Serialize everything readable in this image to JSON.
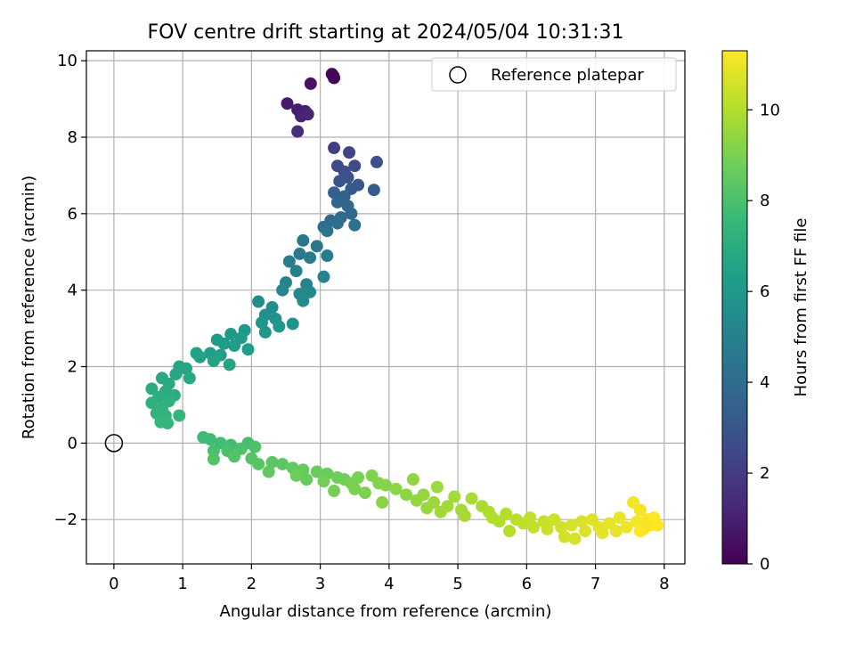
{
  "chart_data": {
    "type": "scatter",
    "title": "FOV centre drift starting at 2024/05/04 10:31:31",
    "xlabel": "Angular distance from reference (arcmin)",
    "ylabel": "Rotation from reference (arcmin)",
    "xlim": [
      -0.4,
      8.3
    ],
    "ylim": [
      -3.16,
      10.26
    ],
    "xticks": [
      "0",
      "1",
      "2",
      "3",
      "4",
      "5",
      "6",
      "7",
      "8"
    ],
    "yticks": [
      "−2",
      "0",
      "2",
      "4",
      "6",
      "8",
      "10"
    ],
    "grid": true,
    "legend": {
      "placement": "top-right",
      "entries": [
        "Reference platepar"
      ]
    },
    "reference_point": {
      "x": 0,
      "y": 0
    },
    "colorbar": {
      "label": "Hours from first FF file",
      "min": 0,
      "max": 11.3,
      "ticks": [
        "0",
        "2",
        "4",
        "6",
        "8",
        "10"
      ],
      "colormap": "viridis",
      "stops": [
        "#440154",
        "#482878",
        "#3e4a89",
        "#31688e",
        "#26828e",
        "#1f9e89",
        "#35b779",
        "#6ece58",
        "#b5de2b",
        "#fde725"
      ]
    },
    "series": [
      {
        "points": [
          {
            "x": 3.19,
            "y": 9.6,
            "t": 0.1
          },
          {
            "x": 3.17,
            "y": 9.65,
            "t": 0.15
          },
          {
            "x": 3.2,
            "y": 9.55,
            "t": 0.2
          },
          {
            "x": 2.86,
            "y": 9.4,
            "t": 0.5
          },
          {
            "x": 2.52,
            "y": 8.88,
            "t": 0.8
          },
          {
            "x": 2.67,
            "y": 8.72,
            "t": 0.9
          },
          {
            "x": 2.78,
            "y": 8.68,
            "t": 1.0
          },
          {
            "x": 2.72,
            "y": 8.55,
            "t": 1.1
          },
          {
            "x": 2.82,
            "y": 8.6,
            "t": 1.2
          },
          {
            "x": 2.67,
            "y": 8.15,
            "t": 1.5
          },
          {
            "x": 3.2,
            "y": 7.72,
            "t": 2.1
          },
          {
            "x": 3.42,
            "y": 7.6,
            "t": 2.3
          },
          {
            "x": 3.25,
            "y": 7.25,
            "t": 2.5
          },
          {
            "x": 3.5,
            "y": 7.25,
            "t": 2.6
          },
          {
            "x": 3.35,
            "y": 7.1,
            "t": 2.7
          },
          {
            "x": 3.82,
            "y": 7.35,
            "t": 2.8
          },
          {
            "x": 3.4,
            "y": 6.95,
            "t": 2.9
          },
          {
            "x": 3.28,
            "y": 6.85,
            "t": 3.0
          },
          {
            "x": 3.55,
            "y": 6.75,
            "t": 3.1
          },
          {
            "x": 3.45,
            "y": 6.65,
            "t": 3.2
          },
          {
            "x": 3.78,
            "y": 6.62,
            "t": 3.3
          },
          {
            "x": 3.2,
            "y": 6.55,
            "t": 3.4
          },
          {
            "x": 3.35,
            "y": 6.45,
            "t": 3.5
          },
          {
            "x": 3.25,
            "y": 6.3,
            "t": 3.6
          },
          {
            "x": 3.4,
            "y": 6.2,
            "t": 3.7
          },
          {
            "x": 3.45,
            "y": 6.0,
            "t": 3.8
          },
          {
            "x": 3.3,
            "y": 5.9,
            "t": 3.9
          },
          {
            "x": 3.15,
            "y": 5.82,
            "t": 4.0
          },
          {
            "x": 3.05,
            "y": 5.65,
            "t": 4.1
          },
          {
            "x": 3.25,
            "y": 5.75,
            "t": 4.15
          },
          {
            "x": 3.5,
            "y": 5.7,
            "t": 4.2
          },
          {
            "x": 3.1,
            "y": 5.55,
            "t": 4.3
          },
          {
            "x": 2.75,
            "y": 5.3,
            "t": 4.4
          },
          {
            "x": 2.95,
            "y": 5.15,
            "t": 4.5
          },
          {
            "x": 2.7,
            "y": 4.95,
            "t": 4.6
          },
          {
            "x": 2.85,
            "y": 4.85,
            "t": 4.7
          },
          {
            "x": 3.1,
            "y": 4.9,
            "t": 4.75
          },
          {
            "x": 2.55,
            "y": 4.75,
            "t": 4.8
          },
          {
            "x": 2.65,
            "y": 4.5,
            "t": 4.9
          },
          {
            "x": 3.05,
            "y": 4.35,
            "t": 5.0
          },
          {
            "x": 2.5,
            "y": 4.2,
            "t": 5.1
          },
          {
            "x": 2.8,
            "y": 4.15,
            "t": 5.15
          },
          {
            "x": 2.45,
            "y": 4.0,
            "t": 5.2
          },
          {
            "x": 2.7,
            "y": 3.9,
            "t": 5.3
          },
          {
            "x": 2.85,
            "y": 3.95,
            "t": 5.35
          },
          {
            "x": 2.75,
            "y": 3.72,
            "t": 5.4
          },
          {
            "x": 2.1,
            "y": 3.7,
            "t": 5.5
          },
          {
            "x": 2.3,
            "y": 3.55,
            "t": 5.6
          },
          {
            "x": 2.2,
            "y": 3.35,
            "t": 5.7
          },
          {
            "x": 2.35,
            "y": 3.25,
            "t": 5.75
          },
          {
            "x": 2.6,
            "y": 3.12,
            "t": 5.8
          },
          {
            "x": 2.15,
            "y": 3.15,
            "t": 5.85
          },
          {
            "x": 2.4,
            "y": 3.05,
            "t": 5.9
          },
          {
            "x": 2.2,
            "y": 2.9,
            "t": 5.95
          },
          {
            "x": 1.9,
            "y": 2.95,
            "t": 6.0
          },
          {
            "x": 1.7,
            "y": 2.85,
            "t": 6.05
          },
          {
            "x": 1.85,
            "y": 2.75,
            "t": 6.1
          },
          {
            "x": 1.5,
            "y": 2.7,
            "t": 6.15
          },
          {
            "x": 1.6,
            "y": 2.6,
            "t": 6.2
          },
          {
            "x": 1.75,
            "y": 2.55,
            "t": 6.25
          },
          {
            "x": 1.95,
            "y": 2.45,
            "t": 6.3
          },
          {
            "x": 1.4,
            "y": 2.35,
            "t": 6.35
          },
          {
            "x": 1.55,
            "y": 2.3,
            "t": 6.4
          },
          {
            "x": 1.25,
            "y": 2.25,
            "t": 6.45
          },
          {
            "x": 1.2,
            "y": 2.35,
            "t": 6.5
          },
          {
            "x": 1.45,
            "y": 2.15,
            "t": 6.55
          },
          {
            "x": 1.68,
            "y": 2.05,
            "t": 6.6
          },
          {
            "x": 0.95,
            "y": 2.0,
            "t": 6.65
          },
          {
            "x": 1.05,
            "y": 1.95,
            "t": 6.7
          },
          {
            "x": 0.9,
            "y": 1.8,
            "t": 6.75
          },
          {
            "x": 0.7,
            "y": 1.7,
            "t": 6.8
          },
          {
            "x": 1.1,
            "y": 1.7,
            "t": 6.85
          },
          {
            "x": 0.8,
            "y": 1.55,
            "t": 6.9
          },
          {
            "x": 0.55,
            "y": 1.42,
            "t": 6.95
          },
          {
            "x": 0.75,
            "y": 1.35,
            "t": 7.0
          },
          {
            "x": 0.88,
            "y": 1.25,
            "t": 7.05
          },
          {
            "x": 0.65,
            "y": 1.2,
            "t": 7.1
          },
          {
            "x": 0.55,
            "y": 1.05,
            "t": 7.15
          },
          {
            "x": 0.8,
            "y": 1.1,
            "t": 7.2
          },
          {
            "x": 0.7,
            "y": 0.9,
            "t": 7.25
          },
          {
            "x": 0.62,
            "y": 0.78,
            "t": 7.3
          },
          {
            "x": 0.75,
            "y": 0.72,
            "t": 7.35
          },
          {
            "x": 0.95,
            "y": 0.72,
            "t": 7.4
          },
          {
            "x": 0.68,
            "y": 0.55,
            "t": 7.45
          },
          {
            "x": 0.78,
            "y": 0.52,
            "t": 7.5
          },
          {
            "x": 1.3,
            "y": 0.15,
            "t": 7.7
          },
          {
            "x": 1.4,
            "y": 0.1,
            "t": 7.75
          },
          {
            "x": 1.55,
            "y": 0.0,
            "t": 7.8
          },
          {
            "x": 1.7,
            "y": -0.05,
            "t": 7.85
          },
          {
            "x": 1.95,
            "y": 0.0,
            "t": 7.9
          },
          {
            "x": 1.45,
            "y": -0.2,
            "t": 7.95
          },
          {
            "x": 1.65,
            "y": -0.2,
            "t": 8.0
          },
          {
            "x": 1.85,
            "y": -0.15,
            "t": 8.05
          },
          {
            "x": 2.05,
            "y": -0.1,
            "t": 8.1
          },
          {
            "x": 1.45,
            "y": -0.42,
            "t": 8.15
          },
          {
            "x": 1.75,
            "y": -0.35,
            "t": 8.2
          },
          {
            "x": 2.0,
            "y": -0.4,
            "t": 8.25
          },
          {
            "x": 2.1,
            "y": -0.55,
            "t": 8.3
          },
          {
            "x": 2.3,
            "y": -0.5,
            "t": 8.35
          },
          {
            "x": 2.45,
            "y": -0.55,
            "t": 8.4
          },
          {
            "x": 2.25,
            "y": -0.75,
            "t": 8.45
          },
          {
            "x": 2.6,
            "y": -0.65,
            "t": 8.5
          },
          {
            "x": 2.75,
            "y": -0.7,
            "t": 8.55
          },
          {
            "x": 2.8,
            "y": -0.95,
            "t": 8.6
          },
          {
            "x": 2.95,
            "y": -0.75,
            "t": 8.65
          },
          {
            "x": 3.1,
            "y": -0.8,
            "t": 8.7
          },
          {
            "x": 2.65,
            "y": -0.85,
            "t": 8.72
          },
          {
            "x": 3.25,
            "y": -0.9,
            "t": 8.75
          },
          {
            "x": 3.35,
            "y": -0.95,
            "t": 8.8
          },
          {
            "x": 3.05,
            "y": -1.0,
            "t": 8.85
          },
          {
            "x": 3.2,
            "y": -1.25,
            "t": 8.9
          },
          {
            "x": 3.45,
            "y": -1.05,
            "t": 8.92
          },
          {
            "x": 3.55,
            "y": -0.9,
            "t": 8.95
          },
          {
            "x": 3.5,
            "y": -1.2,
            "t": 9.0
          },
          {
            "x": 3.65,
            "y": -1.3,
            "t": 9.05
          },
          {
            "x": 3.75,
            "y": -0.85,
            "t": 9.1
          },
          {
            "x": 3.85,
            "y": -1.05,
            "t": 9.15
          },
          {
            "x": 3.95,
            "y": -1.1,
            "t": 9.2
          },
          {
            "x": 3.9,
            "y": -1.55,
            "t": 9.25
          },
          {
            "x": 4.1,
            "y": -1.2,
            "t": 9.3
          },
          {
            "x": 4.25,
            "y": -1.35,
            "t": 9.35
          },
          {
            "x": 4.35,
            "y": -0.95,
            "t": 9.4
          },
          {
            "x": 4.4,
            "y": -1.5,
            "t": 9.45
          },
          {
            "x": 4.5,
            "y": -1.35,
            "t": 9.5
          },
          {
            "x": 4.55,
            "y": -1.7,
            "t": 9.55
          },
          {
            "x": 4.65,
            "y": -1.55,
            "t": 9.6
          },
          {
            "x": 4.7,
            "y": -1.15,
            "t": 9.62
          },
          {
            "x": 4.75,
            "y": -1.8,
            "t": 9.65
          },
          {
            "x": 4.85,
            "y": -1.65,
            "t": 9.7
          },
          {
            "x": 4.95,
            "y": -1.4,
            "t": 9.72
          },
          {
            "x": 5.05,
            "y": -1.75,
            "t": 9.75
          },
          {
            "x": 5.1,
            "y": -1.9,
            "t": 9.8
          },
          {
            "x": 5.2,
            "y": -1.45,
            "t": 9.82
          },
          {
            "x": 5.35,
            "y": -1.65,
            "t": 9.85
          },
          {
            "x": 5.45,
            "y": -1.8,
            "t": 9.9
          },
          {
            "x": 5.5,
            "y": -1.95,
            "t": 9.95
          },
          {
            "x": 5.6,
            "y": -2.05,
            "t": 10.0
          },
          {
            "x": 5.7,
            "y": -1.85,
            "t": 10.05
          },
          {
            "x": 5.75,
            "y": -2.3,
            "t": 10.1
          },
          {
            "x": 5.85,
            "y": -2.0,
            "t": 10.15
          },
          {
            "x": 5.95,
            "y": -2.1,
            "t": 10.2
          },
          {
            "x": 6.05,
            "y": -1.95,
            "t": 10.25
          },
          {
            "x": 6.1,
            "y": -2.2,
            "t": 10.3
          },
          {
            "x": 6.25,
            "y": -2.05,
            "t": 10.35
          },
          {
            "x": 6.3,
            "y": -2.25,
            "t": 10.4
          },
          {
            "x": 6.4,
            "y": -2.0,
            "t": 10.45
          },
          {
            "x": 6.5,
            "y": -2.2,
            "t": 10.5
          },
          {
            "x": 6.55,
            "y": -2.45,
            "t": 10.55
          },
          {
            "x": 6.65,
            "y": -2.15,
            "t": 10.6
          },
          {
            "x": 6.7,
            "y": -2.5,
            "t": 10.62
          },
          {
            "x": 6.8,
            "y": -2.05,
            "t": 10.65
          },
          {
            "x": 6.85,
            "y": -2.3,
            "t": 10.7
          },
          {
            "x": 6.95,
            "y": -2.0,
            "t": 10.75
          },
          {
            "x": 7.05,
            "y": -2.2,
            "t": 10.8
          },
          {
            "x": 7.1,
            "y": -2.35,
            "t": 10.85
          },
          {
            "x": 7.2,
            "y": -2.1,
            "t": 10.9
          },
          {
            "x": 7.3,
            "y": -2.3,
            "t": 10.95
          },
          {
            "x": 7.35,
            "y": -1.95,
            "t": 11.0
          },
          {
            "x": 7.45,
            "y": -2.2,
            "t": 11.05
          },
          {
            "x": 7.55,
            "y": -1.55,
            "t": 11.1
          },
          {
            "x": 7.6,
            "y": -2.05,
            "t": 11.12
          },
          {
            "x": 7.65,
            "y": -1.75,
            "t": 11.15
          },
          {
            "x": 7.7,
            "y": -2.25,
            "t": 11.18
          },
          {
            "x": 7.75,
            "y": -2.0,
            "t": 11.2
          },
          {
            "x": 7.8,
            "y": -2.15,
            "t": 11.22
          },
          {
            "x": 7.85,
            "y": -1.95,
            "t": 11.25
          },
          {
            "x": 7.9,
            "y": -2.15,
            "t": 11.28
          },
          {
            "x": 7.65,
            "y": -2.3,
            "t": 11.3
          }
        ]
      }
    ]
  }
}
